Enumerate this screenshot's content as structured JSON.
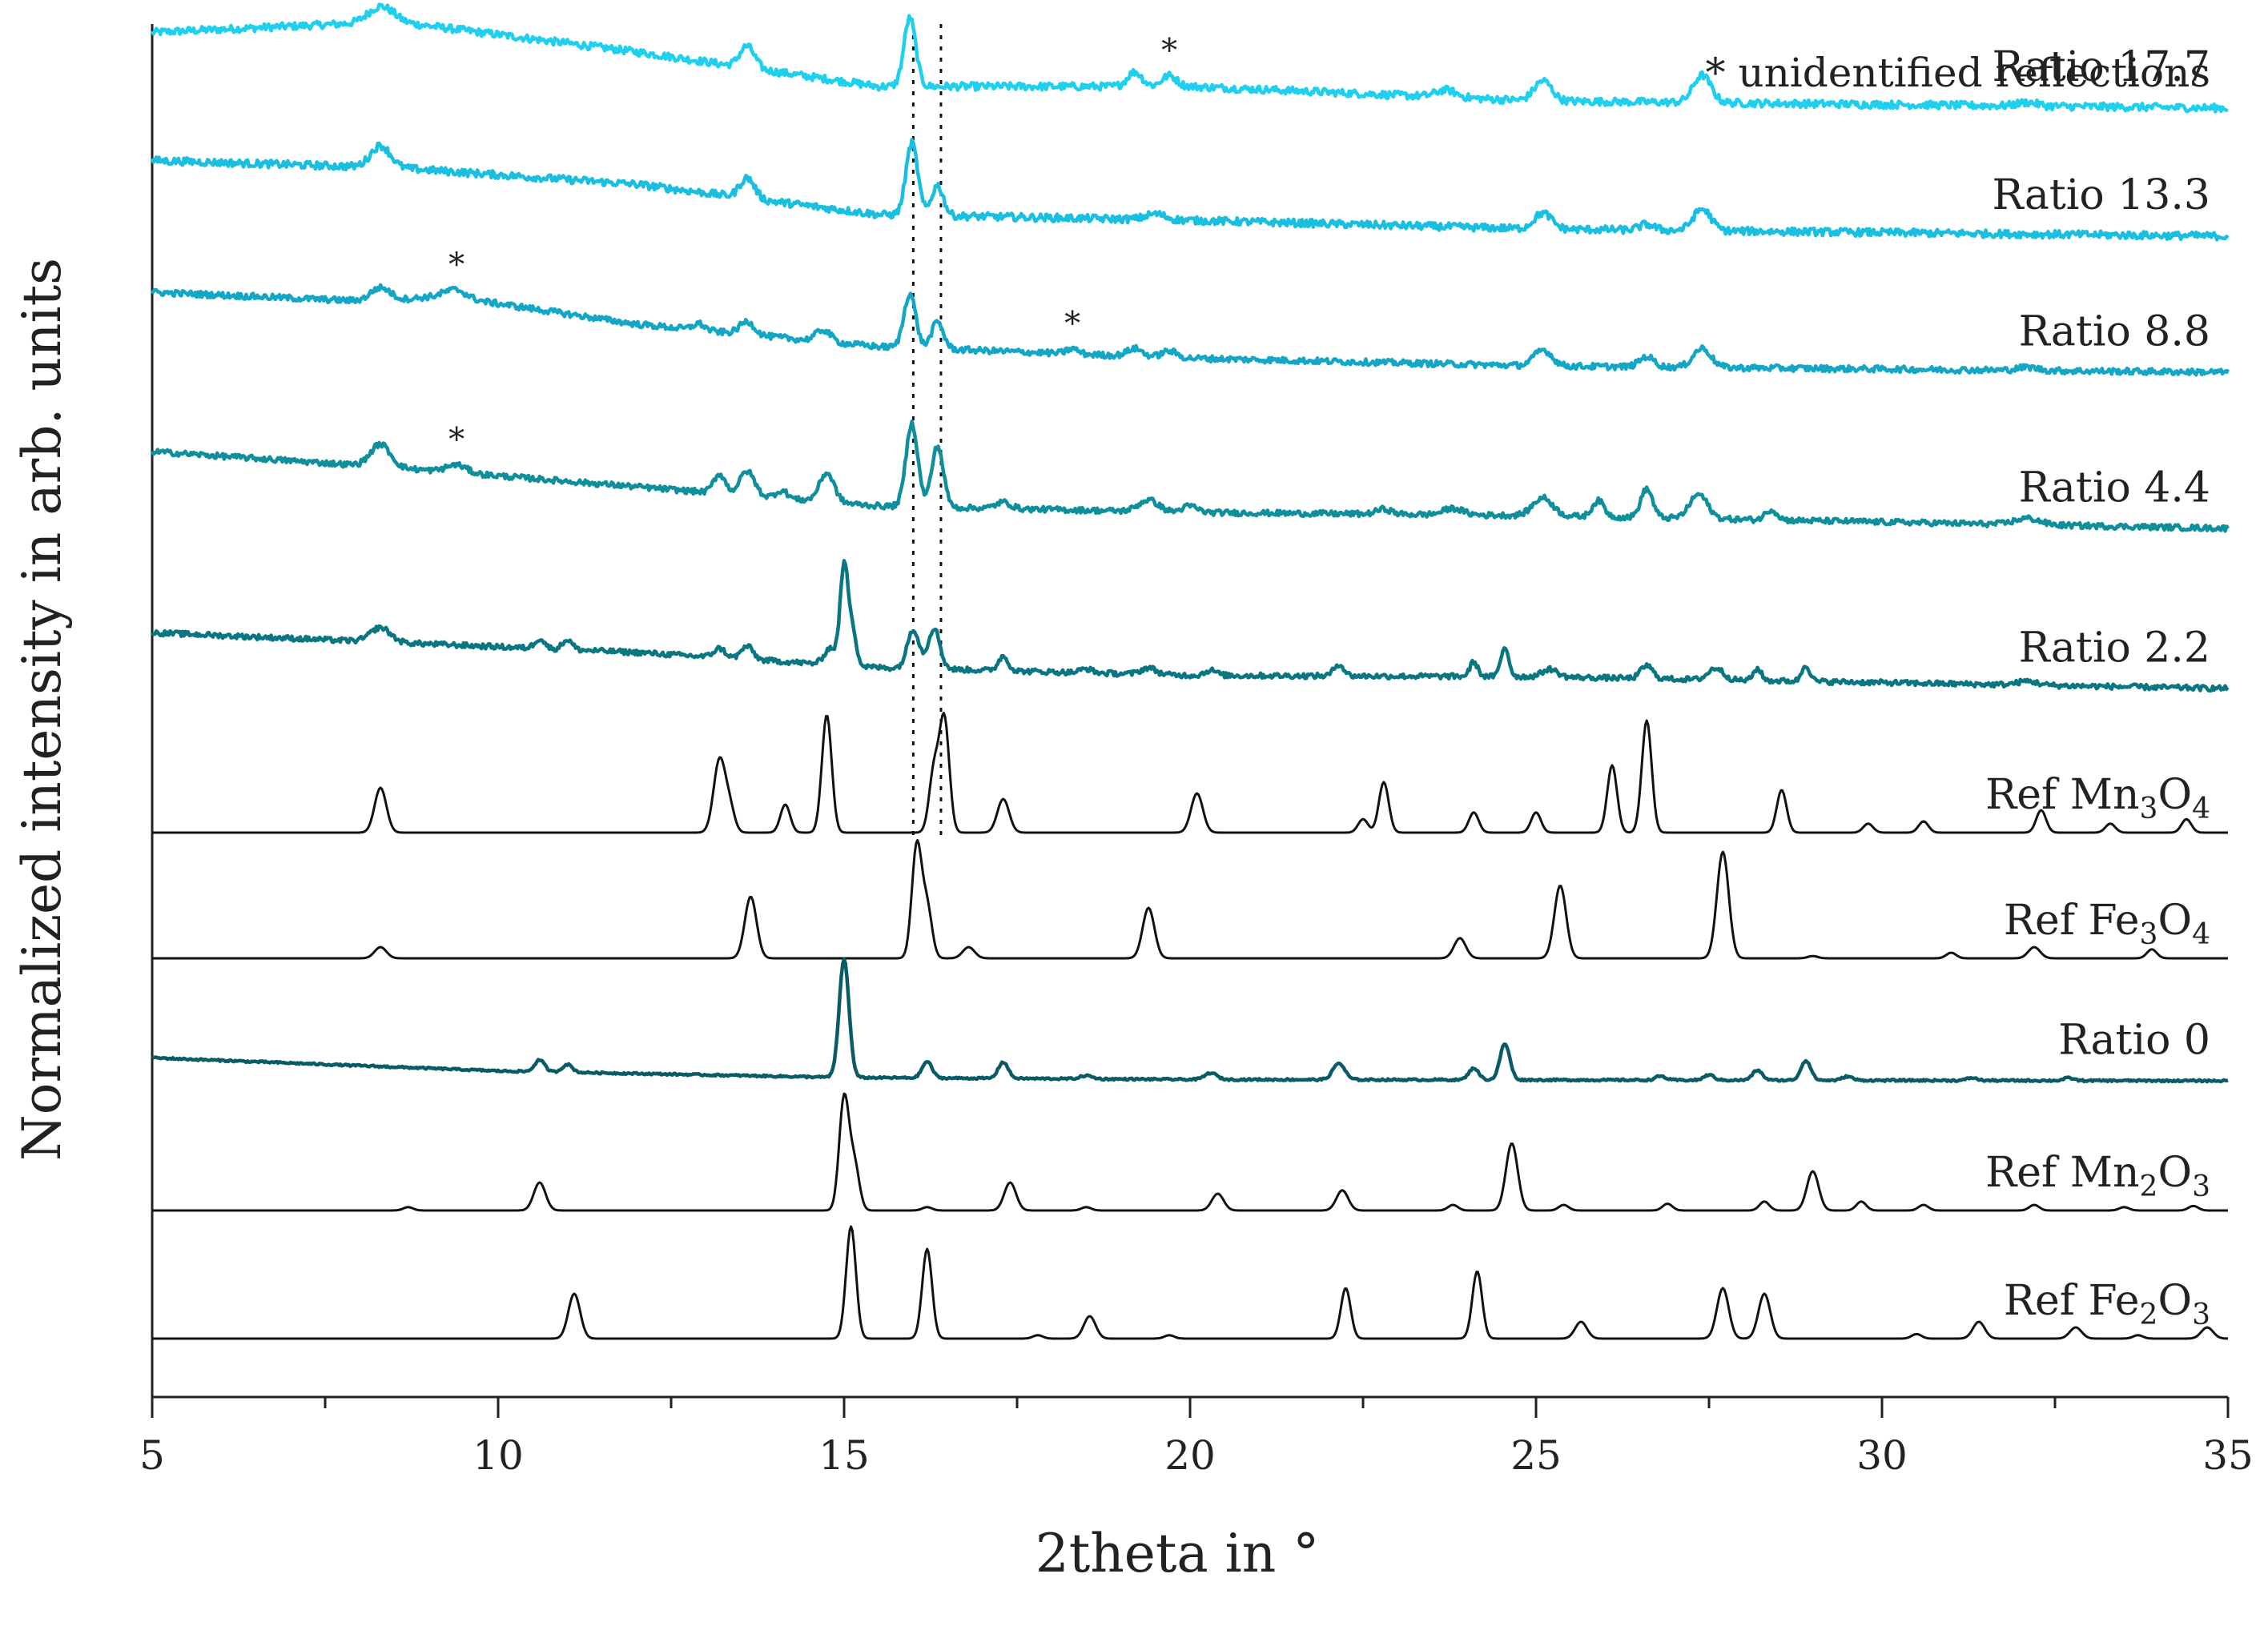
{
  "chart_data": {
    "type": "line",
    "xlabel": "2theta in °",
    "ylabel": "Normalized intensity in arb. units",
    "xlim": [
      5,
      35
    ],
    "x_major_ticks": [
      5,
      10,
      15,
      20,
      25,
      30,
      35
    ],
    "x_tick_labels": [
      "5",
      "10",
      "15",
      "20",
      "25",
      "30",
      "35"
    ],
    "x_minor_step": 2.5,
    "y_ticks_shown": false,
    "grid": false,
    "legend": "none",
    "annotation": "* unidentified reflections",
    "reference_lines_x": [
      16.0,
      16.4
    ],
    "series": [
      {
        "name": "Ratio 17.7",
        "label_base": "Ratio 17.7",
        "color": "#1fd0ee",
        "kind": "measured",
        "noise": 1.3,
        "baseline": [
          [
            5,
            1.05
          ],
          [
            8.5,
            1.2
          ],
          [
            12,
            0.78
          ],
          [
            15.5,
            0.3
          ],
          [
            20,
            0.3
          ],
          [
            25,
            0.1
          ],
          [
            35,
            0.0
          ]
        ],
        "peaks": [
          [
            8.3,
            0.22,
            0.25
          ],
          [
            13.6,
            0.3,
            0.15
          ],
          [
            15.95,
            0.95,
            0.12
          ],
          [
            19.2,
            0.2,
            0.15
          ],
          [
            19.7,
            0.15,
            0.15
          ],
          [
            23.7,
            0.1,
            0.2
          ],
          [
            25.1,
            0.28,
            0.18
          ],
          [
            27.4,
            0.38,
            0.18
          ],
          [
            32.1,
            0.05,
            0.2
          ]
        ]
      },
      {
        "name": "Ratio 13.3",
        "label_base": "Ratio 13.3",
        "color": "#1abfe0",
        "kind": "measured",
        "noise": 1.3,
        "baseline": [
          [
            5,
            1.05
          ],
          [
            8.5,
            0.95
          ],
          [
            12,
            0.72
          ],
          [
            15.5,
            0.3
          ],
          [
            20,
            0.22
          ],
          [
            25,
            0.1
          ],
          [
            35,
            0.0
          ]
        ],
        "peaks": [
          [
            8.3,
            0.3,
            0.2
          ],
          [
            13.6,
            0.28,
            0.15
          ],
          [
            15.98,
            1.0,
            0.12
          ],
          [
            16.35,
            0.42,
            0.12
          ],
          [
            19.5,
            0.08,
            0.2
          ],
          [
            25.1,
            0.22,
            0.18
          ],
          [
            26.6,
            0.08,
            0.15
          ],
          [
            27.4,
            0.3,
            0.18
          ]
        ]
      },
      {
        "name": "Ratio 8.8",
        "label_base": "Ratio 8.8",
        "color": "#14a7c5",
        "kind": "measured",
        "noise": 1.2,
        "baseline": [
          [
            5,
            1.25
          ],
          [
            8.3,
            1.1
          ],
          [
            9.2,
            1.2
          ],
          [
            12,
            0.75
          ],
          [
            15.5,
            0.4
          ],
          [
            20,
            0.22
          ],
          [
            25,
            0.1
          ],
          [
            35,
            0.0
          ]
        ],
        "peaks": [
          [
            8.3,
            0.22,
            0.2
          ],
          [
            9.4,
            0.12,
            0.2
          ],
          [
            12.9,
            0.1,
            0.12
          ],
          [
            13.6,
            0.2,
            0.15
          ],
          [
            14.7,
            0.18,
            0.15
          ],
          [
            15.95,
            0.85,
            0.12
          ],
          [
            16.35,
            0.42,
            0.12
          ],
          [
            18.3,
            0.08,
            0.12
          ],
          [
            19.2,
            0.12,
            0.15
          ],
          [
            19.7,
            0.1,
            0.15
          ],
          [
            25.1,
            0.25,
            0.18
          ],
          [
            26.6,
            0.16,
            0.15
          ],
          [
            27.4,
            0.3,
            0.18
          ],
          [
            32.1,
            0.05,
            0.2
          ]
        ]
      },
      {
        "name": "Ratio 4.4",
        "label_base": "Ratio 4.4",
        "color": "#0f8f9c",
        "kind": "measured",
        "noise": 1.1,
        "baseline": [
          [
            5,
            1.2
          ],
          [
            8.5,
            0.95
          ],
          [
            12,
            0.65
          ],
          [
            15.5,
            0.35
          ],
          [
            20,
            0.25
          ],
          [
            25,
            0.2
          ],
          [
            35,
            0.0
          ]
        ],
        "peaks": [
          [
            8.3,
            0.35,
            0.2
          ],
          [
            9.4,
            0.12,
            0.2
          ],
          [
            13.2,
            0.3,
            0.12
          ],
          [
            13.6,
            0.38,
            0.15
          ],
          [
            14.1,
            0.12,
            0.12
          ],
          [
            14.75,
            0.45,
            0.15
          ],
          [
            15.98,
            1.3,
            0.12
          ],
          [
            16.35,
            0.95,
            0.12
          ],
          [
            17.3,
            0.1,
            0.15
          ],
          [
            19.4,
            0.18,
            0.2
          ],
          [
            20.0,
            0.1,
            0.15
          ],
          [
            22.8,
            0.08,
            0.15
          ],
          [
            23.8,
            0.1,
            0.2
          ],
          [
            25.1,
            0.28,
            0.2
          ],
          [
            25.9,
            0.25,
            0.12
          ],
          [
            26.6,
            0.45,
            0.12
          ],
          [
            27.35,
            0.38,
            0.18
          ],
          [
            28.4,
            0.16,
            0.12
          ],
          [
            32.1,
            0.1,
            0.25
          ]
        ]
      },
      {
        "name": "Ratio 2.2",
        "label_base": "Ratio 2.2",
        "color": "#0a7682",
        "kind": "measured",
        "noise": 1.0,
        "baseline": [
          [
            5,
            0.85
          ],
          [
            8.5,
            0.7
          ],
          [
            12,
            0.55
          ],
          [
            15.5,
            0.32
          ],
          [
            20,
            0.2
          ],
          [
            25,
            0.18
          ],
          [
            35,
            0.0
          ]
        ],
        "peaks": [
          [
            8.3,
            0.22,
            0.2
          ],
          [
            10.6,
            0.15,
            0.1
          ],
          [
            11.0,
            0.15,
            0.1
          ],
          [
            13.2,
            0.14,
            0.12
          ],
          [
            13.6,
            0.2,
            0.12
          ],
          [
            14.8,
            0.25,
            0.12
          ],
          [
            15.0,
            1.5,
            0.08
          ],
          [
            15.12,
            0.55,
            0.08
          ],
          [
            16.0,
            0.6,
            0.12
          ],
          [
            16.3,
            0.62,
            0.12
          ],
          [
            17.3,
            0.22,
            0.1
          ],
          [
            18.5,
            0.06,
            0.12
          ],
          [
            19.4,
            0.1,
            0.15
          ],
          [
            20.3,
            0.08,
            0.12
          ],
          [
            22.15,
            0.18,
            0.1
          ],
          [
            24.1,
            0.22,
            0.08
          ],
          [
            24.55,
            0.45,
            0.08
          ],
          [
            25.2,
            0.12,
            0.15
          ],
          [
            26.6,
            0.2,
            0.12
          ],
          [
            27.6,
            0.18,
            0.15
          ],
          [
            28.2,
            0.18,
            0.08
          ],
          [
            28.9,
            0.25,
            0.08
          ],
          [
            32.1,
            0.06,
            0.2
          ]
        ]
      },
      {
        "name": "Ref Mn3O4",
        "label_base": "Ref Mn",
        "label_sub1": "3",
        "label_mid": "O",
        "label_sub2": "4",
        "color": "#111111",
        "kind": "reference",
        "noise": 0,
        "baseline": [
          [
            5,
            0.0
          ],
          [
            35,
            0.0
          ]
        ],
        "peaks": [
          [
            8.3,
            0.4,
            0.12
          ],
          [
            13.2,
            0.65,
            0.12
          ],
          [
            13.35,
            0.2,
            0.1
          ],
          [
            14.15,
            0.25,
            0.1
          ],
          [
            14.75,
            1.05,
            0.1
          ],
          [
            16.45,
            1.0,
            0.1
          ],
          [
            16.3,
            0.55,
            0.1
          ],
          [
            17.3,
            0.3,
            0.12
          ],
          [
            20.1,
            0.35,
            0.12
          ],
          [
            22.5,
            0.12,
            0.1
          ],
          [
            22.8,
            0.45,
            0.1
          ],
          [
            24.1,
            0.18,
            0.1
          ],
          [
            25.0,
            0.18,
            0.1
          ],
          [
            26.1,
            0.6,
            0.1
          ],
          [
            26.6,
            1.0,
            0.1
          ],
          [
            28.55,
            0.38,
            0.1
          ],
          [
            29.8,
            0.08,
            0.1
          ],
          [
            30.6,
            0.1,
            0.1
          ],
          [
            32.3,
            0.2,
            0.1
          ],
          [
            33.3,
            0.08,
            0.1
          ],
          [
            34.4,
            0.12,
            0.1
          ]
        ]
      },
      {
        "name": "Ref Fe3O4",
        "label_base": "Ref Fe",
        "label_sub1": "3",
        "label_mid": "O",
        "label_sub2": "4",
        "color": "#111111",
        "kind": "reference",
        "noise": 0,
        "baseline": [
          [
            5,
            0.0
          ],
          [
            35,
            0.0
          ]
        ],
        "peaks": [
          [
            8.3,
            0.1,
            0.12
          ],
          [
            13.65,
            0.55,
            0.12
          ],
          [
            16.05,
            1.0,
            0.1
          ],
          [
            16.2,
            0.45,
            0.1
          ],
          [
            16.8,
            0.1,
            0.12
          ],
          [
            19.4,
            0.45,
            0.12
          ],
          [
            23.9,
            0.18,
            0.12
          ],
          [
            25.35,
            0.65,
            0.12
          ],
          [
            27.7,
            0.95,
            0.12
          ],
          [
            29.0,
            0.02,
            0.1
          ],
          [
            31.0,
            0.05,
            0.1
          ],
          [
            32.2,
            0.1,
            0.12
          ],
          [
            33.9,
            0.08,
            0.1
          ]
        ]
      },
      {
        "name": "Ratio 0",
        "label_base": "Ratio 0",
        "color": "#0b5b66",
        "kind": "measured",
        "noise": 0.35,
        "baseline": [
          [
            5,
            0.35
          ],
          [
            7.5,
            0.25
          ],
          [
            10,
            0.15
          ],
          [
            15,
            0.05
          ],
          [
            20,
            0.02
          ],
          [
            35,
            0.0
          ]
        ],
        "peaks": [
          [
            10.6,
            0.18,
            0.1
          ],
          [
            11.0,
            0.12,
            0.1
          ],
          [
            15.0,
            1.8,
            0.1
          ],
          [
            16.2,
            0.25,
            0.1
          ],
          [
            17.3,
            0.25,
            0.1
          ],
          [
            18.5,
            0.05,
            0.12
          ],
          [
            20.3,
            0.1,
            0.12
          ],
          [
            22.15,
            0.25,
            0.12
          ],
          [
            24.1,
            0.18,
            0.1
          ],
          [
            24.55,
            0.55,
            0.1
          ],
          [
            26.8,
            0.06,
            0.1
          ],
          [
            27.5,
            0.08,
            0.1
          ],
          [
            28.2,
            0.15,
            0.1
          ],
          [
            28.9,
            0.3,
            0.1
          ],
          [
            29.5,
            0.06,
            0.1
          ],
          [
            31.3,
            0.04,
            0.1
          ],
          [
            32.7,
            0.04,
            0.1
          ]
        ]
      },
      {
        "name": "Ref Mn2O3",
        "label_base": "Ref Mn",
        "label_sub1": "2",
        "label_mid": "O",
        "label_sub2": "3",
        "color": "#111111",
        "kind": "reference",
        "noise": 0,
        "baseline": [
          [
            5,
            0.0
          ],
          [
            35,
            0.0
          ]
        ],
        "peaks": [
          [
            8.7,
            0.03,
            0.1
          ],
          [
            10.6,
            0.25,
            0.12
          ],
          [
            15.0,
            1.0,
            0.1
          ],
          [
            15.15,
            0.4,
            0.1
          ],
          [
            16.2,
            0.03,
            0.1
          ],
          [
            17.4,
            0.25,
            0.12
          ],
          [
            18.5,
            0.03,
            0.1
          ],
          [
            20.4,
            0.15,
            0.12
          ],
          [
            22.2,
            0.18,
            0.12
          ],
          [
            23.8,
            0.05,
            0.1
          ],
          [
            24.65,
            0.6,
            0.12
          ],
          [
            25.4,
            0.05,
            0.1
          ],
          [
            26.9,
            0.06,
            0.1
          ],
          [
            28.3,
            0.08,
            0.1
          ],
          [
            29.0,
            0.35,
            0.12
          ],
          [
            29.7,
            0.08,
            0.1
          ],
          [
            30.6,
            0.05,
            0.1
          ],
          [
            32.2,
            0.05,
            0.1
          ],
          [
            33.5,
            0.03,
            0.1
          ],
          [
            34.5,
            0.04,
            0.1
          ]
        ]
      },
      {
        "name": "Ref Fe2O3",
        "label_base": "Ref Fe",
        "label_sub1": "2",
        "label_mid": "O",
        "label_sub2": "3",
        "color": "#111111",
        "kind": "reference",
        "noise": 0,
        "baseline": [
          [
            5,
            0.0
          ],
          [
            35,
            0.0
          ]
        ],
        "peaks": [
          [
            11.1,
            0.4,
            0.12
          ],
          [
            15.1,
            1.0,
            0.1
          ],
          [
            16.2,
            0.8,
            0.1
          ],
          [
            17.8,
            0.03,
            0.1
          ],
          [
            18.55,
            0.2,
            0.12
          ],
          [
            19.7,
            0.03,
            0.1
          ],
          [
            22.25,
            0.45,
            0.1
          ],
          [
            24.15,
            0.6,
            0.1
          ],
          [
            25.65,
            0.15,
            0.12
          ],
          [
            27.7,
            0.45,
            0.12
          ],
          [
            28.3,
            0.4,
            0.12
          ],
          [
            30.5,
            0.04,
            0.1
          ],
          [
            31.4,
            0.15,
            0.12
          ],
          [
            32.8,
            0.1,
            0.12
          ],
          [
            33.7,
            0.03,
            0.1
          ],
          [
            34.7,
            0.1,
            0.12
          ]
        ]
      }
    ],
    "asterisks": [
      {
        "x": 19.7,
        "series": "Ratio 17.7",
        "text": "*"
      },
      {
        "x": 9.4,
        "series": "Ratio 8.8",
        "text": "*"
      },
      {
        "x": 18.3,
        "series": "Ratio 8.8",
        "text": "*"
      },
      {
        "x": 9.4,
        "series": "Ratio 4.4",
        "text": "*"
      }
    ]
  }
}
